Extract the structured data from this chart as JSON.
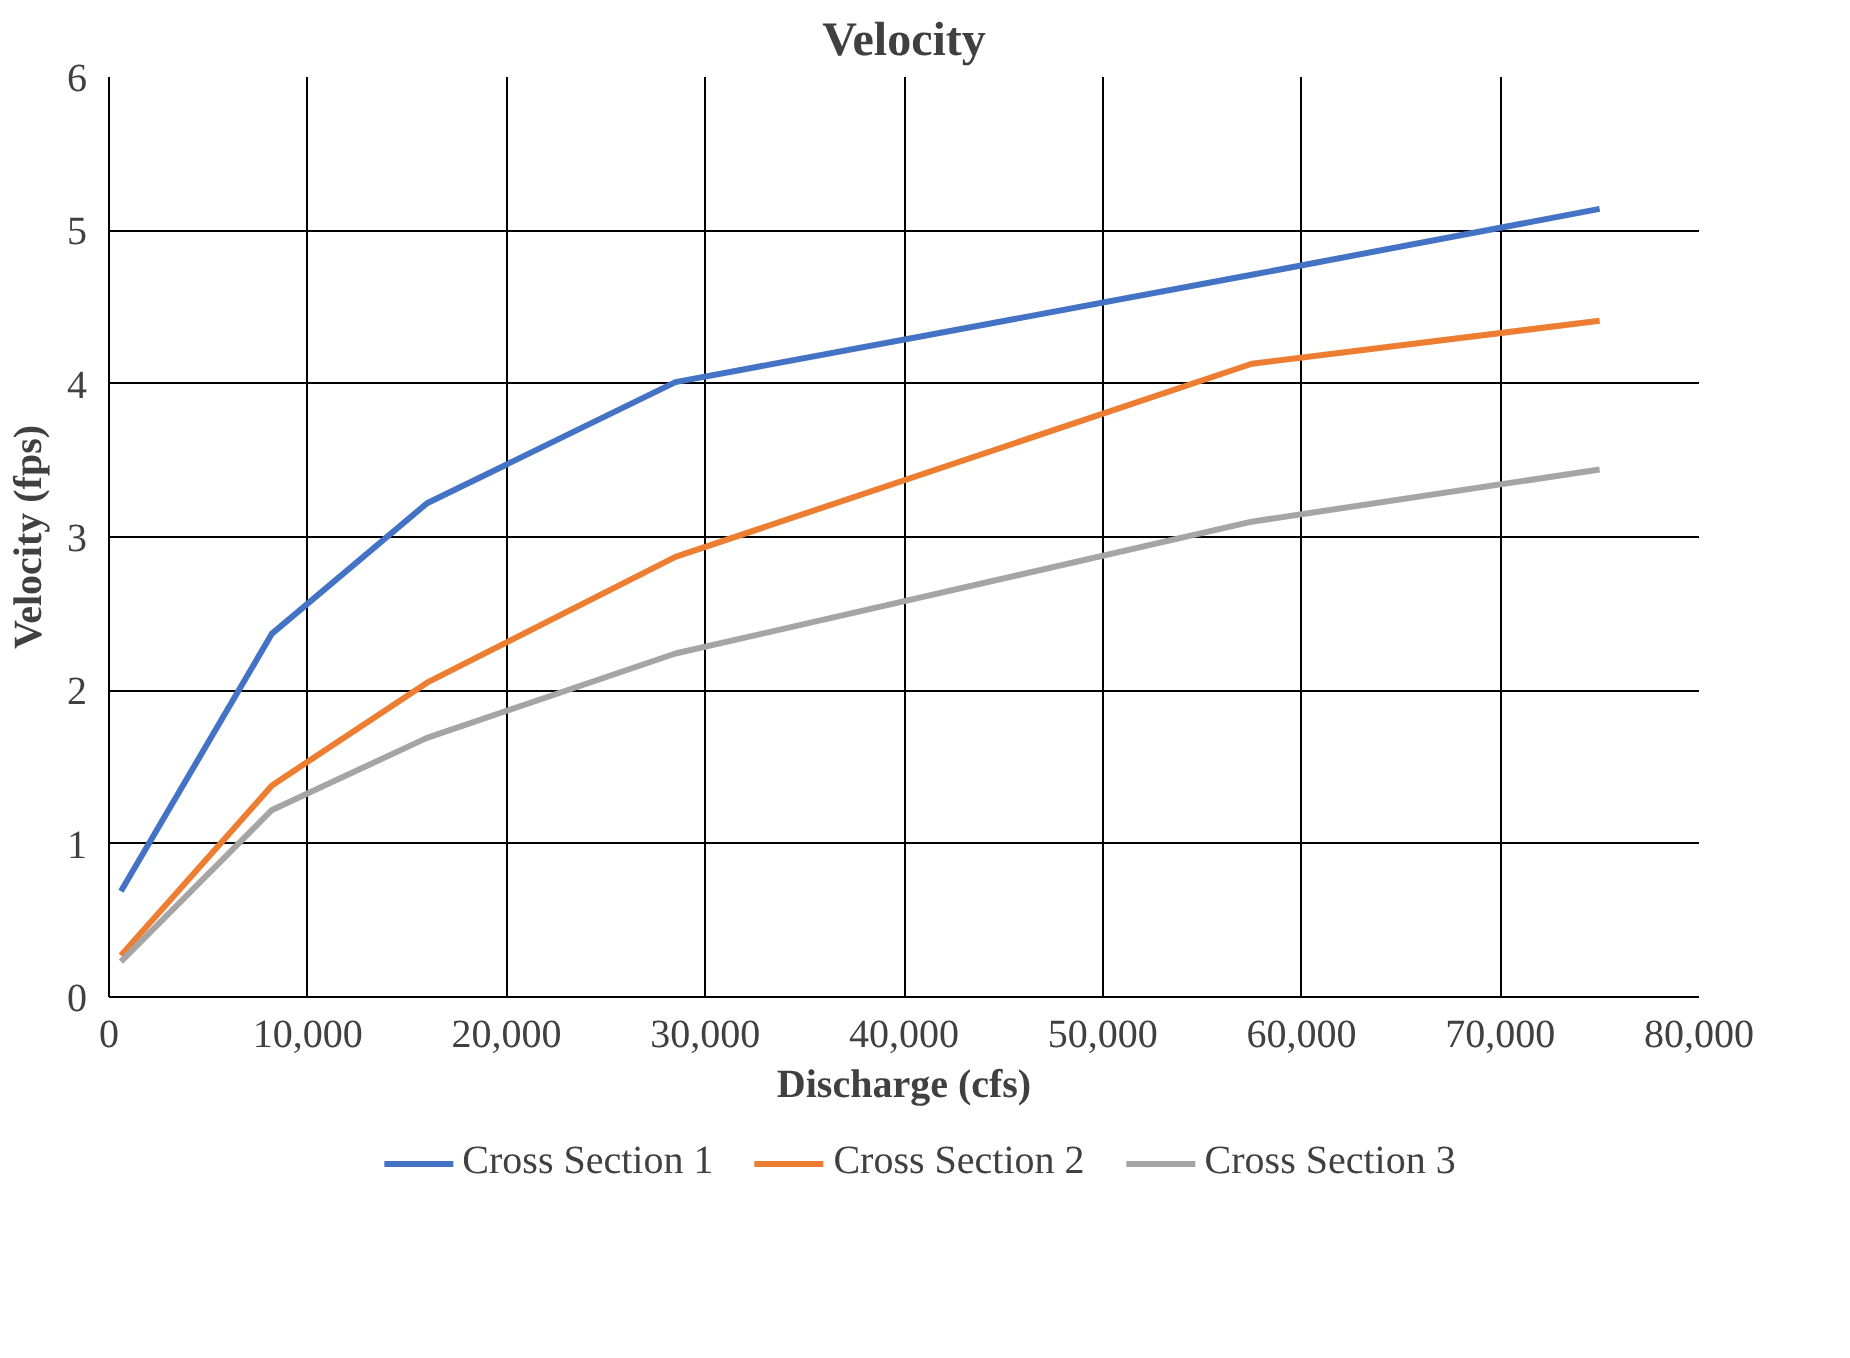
{
  "chart_data": {
    "type": "line",
    "title": "Velocity",
    "xlabel": "Discharge (cfs)",
    "ylabel": "Velocity (fps)",
    "xlim": [
      0,
      80000
    ],
    "ylim": [
      0,
      6
    ],
    "xticks": [
      {
        "value": 0,
        "label": "0"
      },
      {
        "value": 10000,
        "label": "10,000"
      },
      {
        "value": 20000,
        "label": "20,000"
      },
      {
        "value": 30000,
        "label": "30,000"
      },
      {
        "value": 40000,
        "label": "40,000"
      },
      {
        "value": 50000,
        "label": "50,000"
      },
      {
        "value": 60000,
        "label": "60,000"
      },
      {
        "value": 70000,
        "label": "70,000"
      },
      {
        "value": 80000,
        "label": "80,000"
      }
    ],
    "yticks": [
      0,
      1,
      2,
      3,
      4,
      5,
      6
    ],
    "x": [
      600,
      8200,
      16000,
      28500,
      57500,
      75000
    ],
    "series": [
      {
        "name": "Cross Section 1",
        "color": "#4472c4",
        "values": [
          0.69,
          2.37,
          3.22,
          4.01,
          4.71,
          5.14
        ]
      },
      {
        "name": "Cross Section 2",
        "color": "#ed7d31",
        "values": [
          0.27,
          1.38,
          2.05,
          2.87,
          4.13,
          4.41
        ]
      },
      {
        "name": "Cross Section 3",
        "color": "#a5a5a5",
        "values": [
          0.23,
          1.22,
          1.69,
          2.24,
          3.1,
          3.44
        ]
      }
    ],
    "grid": true,
    "legend": "bottom",
    "marker": "none",
    "line_style": "solid"
  }
}
